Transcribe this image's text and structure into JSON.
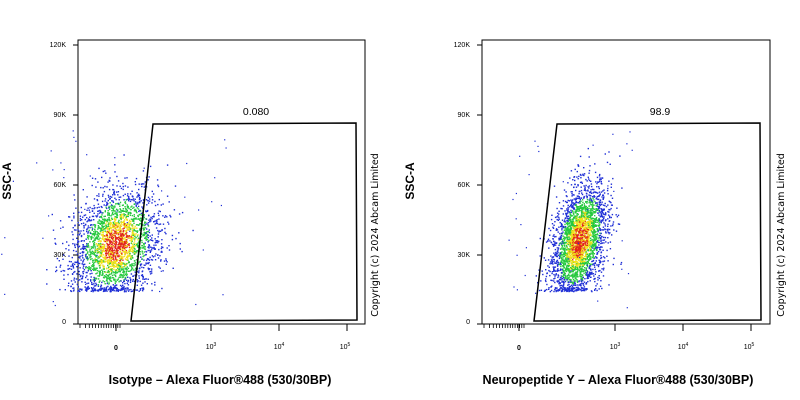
{
  "chart_data": [
    {
      "type": "scatter",
      "panel": "isotype",
      "xlabel": "Isotype – Alexa Fluor®488 (530/30BP)",
      "ylabel": "SSC-A",
      "ylim": [
        0,
        120000
      ],
      "y_ticks": [
        "0",
        "30K",
        "60K",
        "90K",
        "120K"
      ],
      "x_scale": "biexponential",
      "x_ticks": [
        "0",
        "10^3",
        "10^4",
        "10^5"
      ],
      "gate_value": "0.080",
      "copyright": "Copyright (c) 2024 Abcam Limited",
      "population": {
        "description": "density scatter (pseudocolor)",
        "x_center": 0,
        "x_range": [
          -300,
          250
        ],
        "y_center": 35000,
        "y_range": [
          15000,
          75000
        ]
      }
    },
    {
      "type": "scatter",
      "panel": "neuropeptide-y",
      "xlabel": "Neuropeptide Y – Alexa Fluor®488 (530/30BP)",
      "ylabel": "SSC-A",
      "ylim": [
        0,
        120000
      ],
      "y_ticks": [
        "0",
        "30K",
        "60K",
        "90K",
        "120K"
      ],
      "x_scale": "biexponential",
      "x_ticks": [
        "0",
        "10^3",
        "10^4",
        "10^5"
      ],
      "gate_value": "98.9",
      "copyright": "Copyright (c) 2024 Abcam Limited",
      "population": {
        "description": "density scatter (pseudocolor)",
        "x_center": 350,
        "x_range": [
          100,
          900
        ],
        "y_center": 36000,
        "y_range": [
          15000,
          75000
        ]
      }
    }
  ],
  "colors": {
    "density_low": "#1f2fd6",
    "density_mid": "#27c93f",
    "density_high_mid": "#f2e21a",
    "density_high": "#e2241c"
  }
}
